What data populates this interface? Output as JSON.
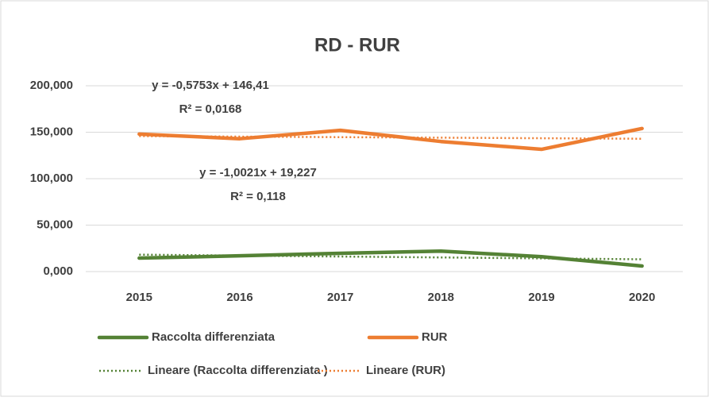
{
  "chart_data": {
    "type": "line",
    "title": "RD - RUR",
    "categories": [
      "2015",
      "2016",
      "2017",
      "2018",
      "2019",
      "2020"
    ],
    "ylim": [
      0,
      200
    ],
    "yticks": [
      {
        "value": 0,
        "label": "0,000"
      },
      {
        "value": 50,
        "label": "50,000"
      },
      {
        "value": 100,
        "label": "100,000"
      },
      {
        "value": 150,
        "label": "150,000"
      },
      {
        "value": 200,
        "label": "200,000"
      }
    ],
    "grid": true,
    "series": [
      {
        "name": "Raccolta differenziata",
        "color": "#548235",
        "style": "solid",
        "values": [
          14.5,
          17,
          19.7,
          22,
          16,
          6
        ]
      },
      {
        "name": "RUR",
        "color": "#ed7d31",
        "style": "solid",
        "values": [
          148,
          143,
          152,
          140,
          131.6,
          154
        ]
      },
      {
        "name": "Lineare (Raccolta differenziata )",
        "color": "#548235",
        "style": "dotted",
        "values": [
          18.21,
          17.2,
          16.2,
          15.2,
          14.2,
          13.21
        ]
      },
      {
        "name": "Lineare (RUR)",
        "color": "#ed7d31",
        "style": "dotted",
        "values": [
          145.83,
          145.26,
          144.68,
          144.11,
          143.53,
          142.96
        ]
      }
    ],
    "annotations": [
      "y = -0,5753x + 146,41",
      "R² = 0,0168",
      "y = -1,0021x + 19,227",
      "R² = 0,118"
    ],
    "legend": "bottom"
  }
}
